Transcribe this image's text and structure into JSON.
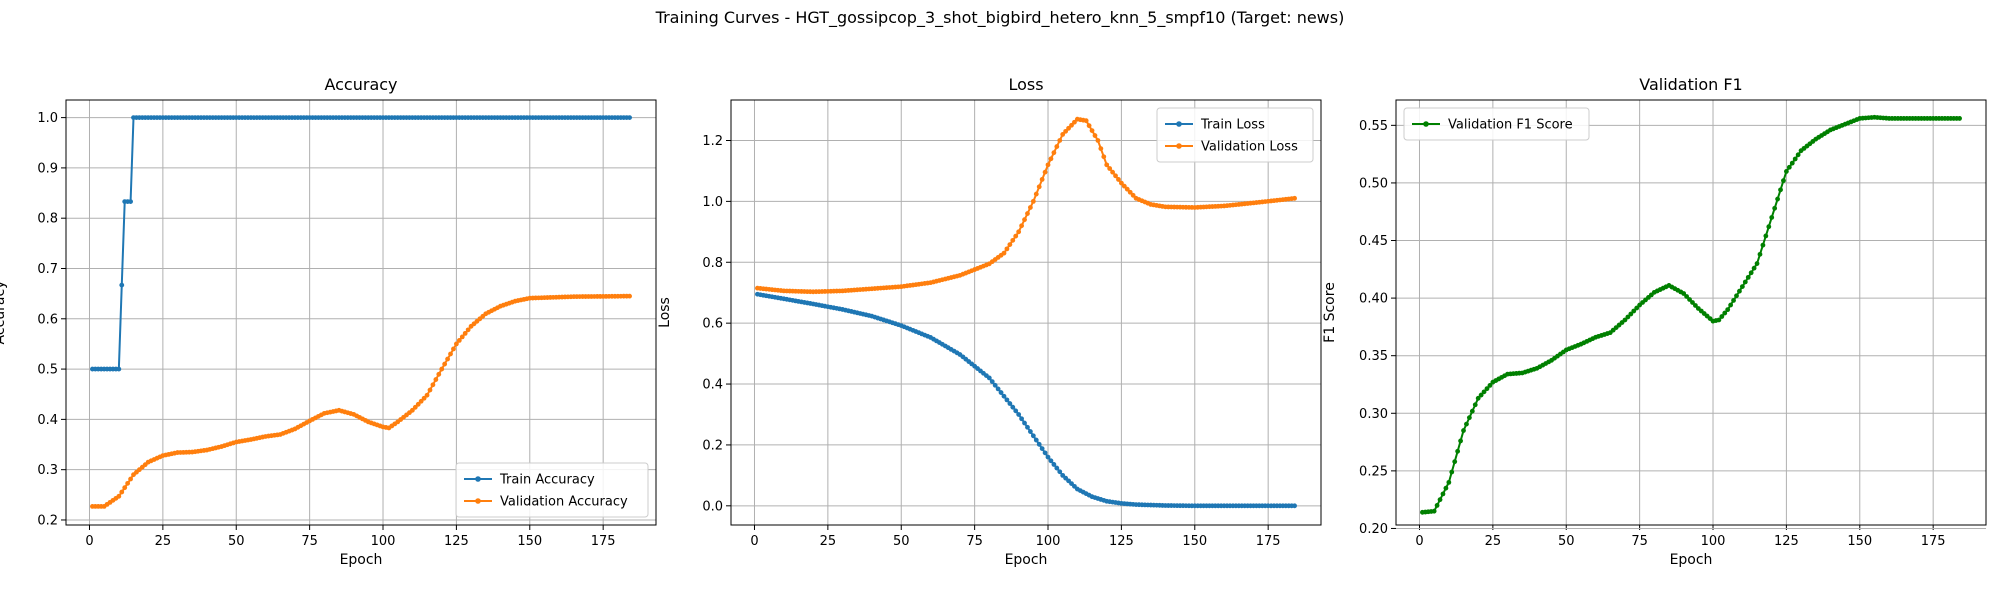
{
  "figure_title": "Training Curves - HGT_gossipcop_3_shot_bigbird_hetero_knn_5_smpf10 (Target: news)",
  "colors": {
    "blue": "#1f77b4",
    "orange": "#ff7f0e",
    "green": "#008000",
    "grid": "#b0b0b0"
  },
  "chart_data": [
    {
      "type": "line",
      "title": "Accuracy",
      "xlabel": "Epoch",
      "ylabel": "Accuracy",
      "xlim": [
        -8,
        193
      ],
      "ylim": [
        0.19,
        1.035
      ],
      "xticks": [
        0,
        25,
        50,
        75,
        100,
        125,
        150,
        175
      ],
      "yticks": [
        0.2,
        0.3,
        0.4,
        0.5,
        0.6,
        0.7,
        0.8,
        0.9,
        1.0
      ],
      "ytick_labels": [
        "0.2",
        "0.3",
        "0.4",
        "0.5",
        "0.6",
        "0.7",
        "0.8",
        "0.9",
        "1.0"
      ],
      "grid": true,
      "legend_position": "lower-right",
      "epochs": [
        1,
        184
      ],
      "series": [
        {
          "name": "Train Accuracy",
          "color": "#1f77b4",
          "points": [
            [
              1,
              0.5
            ],
            [
              10,
              0.5
            ],
            [
              11,
              0.667
            ],
            [
              12,
              0.833
            ],
            [
              14,
              0.833
            ],
            [
              15,
              1.0
            ],
            [
              184,
              1.0
            ]
          ]
        },
        {
          "name": "Validation Accuracy",
          "color": "#ff7f0e",
          "points": [
            [
              1,
              0.227
            ],
            [
              5,
              0.227
            ],
            [
              10,
              0.247
            ],
            [
              15,
              0.29
            ],
            [
              20,
              0.315
            ],
            [
              25,
              0.328
            ],
            [
              30,
              0.334
            ],
            [
              35,
              0.335
            ],
            [
              40,
              0.339
            ],
            [
              45,
              0.346
            ],
            [
              50,
              0.355
            ],
            [
              55,
              0.36
            ],
            [
              60,
              0.366
            ],
            [
              65,
              0.37
            ],
            [
              70,
              0.381
            ],
            [
              75,
              0.397
            ],
            [
              80,
              0.412
            ],
            [
              85,
              0.418
            ],
            [
              90,
              0.41
            ],
            [
              95,
              0.395
            ],
            [
              100,
              0.385
            ],
            [
              102,
              0.383
            ],
            [
              105,
              0.395
            ],
            [
              110,
              0.418
            ],
            [
              115,
              0.448
            ],
            [
              120,
              0.5
            ],
            [
              125,
              0.55
            ],
            [
              130,
              0.585
            ],
            [
              135,
              0.61
            ],
            [
              140,
              0.625
            ],
            [
              145,
              0.635
            ],
            [
              150,
              0.641
            ],
            [
              155,
              0.642
            ],
            [
              160,
              0.643
            ],
            [
              165,
              0.644
            ],
            [
              184,
              0.645
            ]
          ]
        }
      ]
    },
    {
      "type": "line",
      "title": "Loss",
      "xlabel": "Epoch",
      "ylabel": "Loss",
      "xlim": [
        -8,
        193
      ],
      "ylim": [
        -0.063,
        1.333
      ],
      "xticks": [
        0,
        25,
        50,
        75,
        100,
        125,
        150,
        175
      ],
      "yticks": [
        0.0,
        0.2,
        0.4,
        0.6,
        0.8,
        1.0,
        1.2
      ],
      "ytick_labels": [
        "0.0",
        "0.2",
        "0.4",
        "0.6",
        "0.8",
        "1.0",
        "1.2"
      ],
      "grid": true,
      "legend_position": "top-right",
      "epochs": [
        1,
        184
      ],
      "series": [
        {
          "name": "Train Loss",
          "color": "#1f77b4",
          "points": [
            [
              1,
              0.695
            ],
            [
              10,
              0.68
            ],
            [
              20,
              0.663
            ],
            [
              30,
              0.645
            ],
            [
              40,
              0.623
            ],
            [
              50,
              0.592
            ],
            [
              60,
              0.553
            ],
            [
              70,
              0.497
            ],
            [
              80,
              0.42
            ],
            [
              90,
              0.3
            ],
            [
              100,
              0.16
            ],
            [
              105,
              0.1
            ],
            [
              110,
              0.055
            ],
            [
              115,
              0.03
            ],
            [
              120,
              0.015
            ],
            [
              125,
              0.008
            ],
            [
              130,
              0.004
            ],
            [
              140,
              0.001
            ],
            [
              150,
              0.0
            ],
            [
              184,
              0.0
            ]
          ]
        },
        {
          "name": "Validation Loss",
          "color": "#ff7f0e",
          "points": [
            [
              1,
              0.715
            ],
            [
              10,
              0.706
            ],
            [
              20,
              0.703
            ],
            [
              30,
              0.706
            ],
            [
              40,
              0.713
            ],
            [
              50,
              0.72
            ],
            [
              60,
              0.733
            ],
            [
              70,
              0.757
            ],
            [
              80,
              0.795
            ],
            [
              85,
              0.83
            ],
            [
              90,
              0.9
            ],
            [
              95,
              1.0
            ],
            [
              100,
              1.12
            ],
            [
              105,
              1.22
            ],
            [
              110,
              1.27
            ],
            [
              113,
              1.265
            ],
            [
              117,
              1.2
            ],
            [
              120,
              1.12
            ],
            [
              125,
              1.06
            ],
            [
              130,
              1.01
            ],
            [
              135,
              0.99
            ],
            [
              140,
              0.982
            ],
            [
              150,
              0.98
            ],
            [
              160,
              0.985
            ],
            [
              170,
              0.995
            ],
            [
              184,
              1.01
            ]
          ]
        }
      ]
    },
    {
      "type": "line",
      "title": "Validation F1",
      "xlabel": "Epoch",
      "ylabel": "F1 Score",
      "xlim": [
        -8,
        193
      ],
      "ylim": [
        0.203,
        0.572
      ],
      "xticks": [
        0,
        25,
        50,
        75,
        100,
        125,
        150,
        175
      ],
      "yticks": [
        0.2,
        0.25,
        0.3,
        0.35,
        0.4,
        0.45,
        0.5,
        0.55
      ],
      "ytick_labels": [
        "0.20",
        "0.25",
        "0.30",
        "0.35",
        "0.40",
        "0.45",
        "0.50",
        "0.55"
      ],
      "grid": true,
      "legend_position": "top-left",
      "epochs": [
        1,
        184
      ],
      "series": [
        {
          "name": "Validation F1 Score",
          "color": "#008000",
          "points": [
            [
              1,
              0.214
            ],
            [
              5,
              0.215
            ],
            [
              10,
              0.24
            ],
            [
              15,
              0.285
            ],
            [
              20,
              0.313
            ],
            [
              25,
              0.327
            ],
            [
              30,
              0.334
            ],
            [
              35,
              0.335
            ],
            [
              40,
              0.339
            ],
            [
              45,
              0.346
            ],
            [
              50,
              0.355
            ],
            [
              55,
              0.36
            ],
            [
              60,
              0.366
            ],
            [
              65,
              0.37
            ],
            [
              70,
              0.381
            ],
            [
              75,
              0.394
            ],
            [
              80,
              0.405
            ],
            [
              85,
              0.411
            ],
            [
              90,
              0.404
            ],
            [
              95,
              0.391
            ],
            [
              100,
              0.38
            ],
            [
              102,
              0.381
            ],
            [
              105,
              0.39
            ],
            [
              110,
              0.41
            ],
            [
              115,
              0.43
            ],
            [
              120,
              0.47
            ],
            [
              125,
              0.51
            ],
            [
              130,
              0.528
            ],
            [
              135,
              0.538
            ],
            [
              140,
              0.546
            ],
            [
              145,
              0.551
            ],
            [
              150,
              0.556
            ],
            [
              155,
              0.557
            ],
            [
              160,
              0.556
            ],
            [
              165,
              0.556
            ],
            [
              184,
              0.556
            ]
          ]
        }
      ]
    }
  ]
}
